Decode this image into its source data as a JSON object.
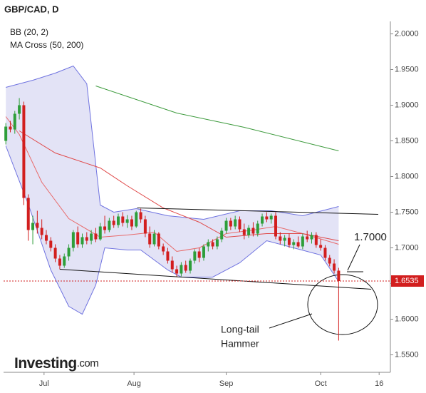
{
  "chart_data": {
    "type": "candlestick",
    "title": "GBP/CAD, D",
    "legend": [
      "BB (20, 2)",
      "MA Cross (50, 200)"
    ],
    "ohlc": [
      [
        1.85,
        1.875,
        1.845,
        1.87
      ],
      [
        1.87,
        1.878,
        1.862,
        1.866
      ],
      [
        1.866,
        1.892,
        1.86,
        1.888
      ],
      [
        1.888,
        1.91,
        1.88,
        1.9
      ],
      [
        1.9,
        1.905,
        1.76,
        1.77
      ],
      [
        1.77,
        1.775,
        1.71,
        1.725
      ],
      [
        1.725,
        1.745,
        1.705,
        1.735
      ],
      [
        1.735,
        1.752,
        1.72,
        1.728
      ],
      [
        1.728,
        1.74,
        1.712,
        1.718
      ],
      [
        1.718,
        1.725,
        1.705,
        1.71
      ],
      [
        1.71,
        1.715,
        1.695,
        1.7
      ],
      [
        1.7,
        1.705,
        1.68,
        1.685
      ],
      [
        1.685,
        1.69,
        1.67,
        1.675
      ],
      [
        1.675,
        1.692,
        1.672,
        1.688
      ],
      [
        1.688,
        1.705,
        1.682,
        1.7
      ],
      [
        1.7,
        1.725,
        1.695,
        1.722
      ],
      [
        1.722,
        1.73,
        1.7,
        1.705
      ],
      [
        1.705,
        1.72,
        1.7,
        1.715
      ],
      [
        1.715,
        1.722,
        1.705,
        1.71
      ],
      [
        1.71,
        1.725,
        1.705,
        1.72
      ],
      [
        1.72,
        1.728,
        1.708,
        1.712
      ],
      [
        1.712,
        1.735,
        1.71,
        1.73
      ],
      [
        1.73,
        1.745,
        1.72,
        1.725
      ],
      [
        1.725,
        1.742,
        1.722,
        1.738
      ],
      [
        1.738,
        1.745,
        1.728,
        1.732
      ],
      [
        1.732,
        1.748,
        1.728,
        1.744
      ],
      [
        1.744,
        1.75,
        1.73,
        1.735
      ],
      [
        1.735,
        1.746,
        1.728,
        1.74
      ],
      [
        1.74,
        1.745,
        1.725,
        1.73
      ],
      [
        1.73,
        1.752,
        1.728,
        1.75
      ],
      [
        1.75,
        1.755,
        1.735,
        1.74
      ],
      [
        1.74,
        1.745,
        1.715,
        1.72
      ],
      [
        1.72,
        1.73,
        1.7,
        1.705
      ],
      [
        1.705,
        1.725,
        1.702,
        1.72
      ],
      [
        1.72,
        1.722,
        1.698,
        1.702
      ],
      [
        1.702,
        1.706,
        1.69,
        1.695
      ],
      [
        1.695,
        1.7,
        1.678,
        1.682
      ],
      [
        1.682,
        1.688,
        1.665,
        1.67
      ],
      [
        1.67,
        1.675,
        1.66,
        1.664
      ],
      [
        1.664,
        1.68,
        1.66,
        1.676
      ],
      [
        1.676,
        1.682,
        1.665,
        1.668
      ],
      [
        1.668,
        1.685,
        1.664,
        1.682
      ],
      [
        1.682,
        1.698,
        1.678,
        1.695
      ],
      [
        1.695,
        1.7,
        1.68,
        1.686
      ],
      [
        1.686,
        1.705,
        1.682,
        1.702
      ],
      [
        1.702,
        1.712,
        1.695,
        1.708
      ],
      [
        1.708,
        1.712,
        1.698,
        1.702
      ],
      [
        1.702,
        1.716,
        1.698,
        1.712
      ],
      [
        1.712,
        1.728,
        1.708,
        1.724
      ],
      [
        1.724,
        1.742,
        1.72,
        1.738
      ],
      [
        1.738,
        1.742,
        1.725,
        1.73
      ],
      [
        1.73,
        1.745,
        1.726,
        1.74
      ],
      [
        1.74,
        1.744,
        1.722,
        1.726
      ],
      [
        1.726,
        1.734,
        1.712,
        1.718
      ],
      [
        1.718,
        1.732,
        1.714,
        1.728
      ],
      [
        1.728,
        1.736,
        1.716,
        1.72
      ],
      [
        1.72,
        1.738,
        1.716,
        1.734
      ],
      [
        1.734,
        1.748,
        1.73,
        1.744
      ],
      [
        1.744,
        1.75,
        1.736,
        1.74
      ],
      [
        1.74,
        1.748,
        1.734,
        1.745
      ],
      [
        1.745,
        1.75,
        1.712,
        1.716
      ],
      [
        1.716,
        1.722,
        1.705,
        1.71
      ],
      [
        1.71,
        1.718,
        1.702,
        1.714
      ],
      [
        1.714,
        1.72,
        1.7,
        1.704
      ],
      [
        1.704,
        1.712,
        1.698,
        1.708
      ],
      [
        1.708,
        1.716,
        1.7,
        1.702
      ],
      [
        1.702,
        1.72,
        1.698,
        1.716
      ],
      [
        1.716,
        1.724,
        1.708,
        1.712
      ],
      [
        1.712,
        1.722,
        1.706,
        1.718
      ],
      [
        1.718,
        1.722,
        1.7,
        1.704
      ],
      [
        1.704,
        1.712,
        1.696,
        1.7
      ],
      [
        1.7,
        1.704,
        1.682,
        1.686
      ],
      [
        1.686,
        1.69,
        1.674,
        1.678
      ],
      [
        1.678,
        1.684,
        1.664,
        1.668
      ],
      [
        1.668,
        1.672,
        1.57,
        1.6535
      ]
    ],
    "up_color": "#2e9e3a",
    "down_color": "#d21e1e",
    "bands": {
      "color": "#6f73e0",
      "fill": "#e3e3f6",
      "upper": {
        "x": [
          0,
          3,
          6,
          11,
          15,
          18,
          21,
          24,
          29,
          36,
          44,
          52,
          59,
          66,
          74
        ],
        "values": [
          1.925,
          1.93,
          1.935,
          1.945,
          1.955,
          1.93,
          1.76,
          1.75,
          1.755,
          1.745,
          1.74,
          1.752,
          1.752,
          1.745,
          1.758
        ]
      },
      "lower": {
        "x": [
          0,
          5,
          10,
          14,
          17,
          20,
          22,
          27,
          30,
          36,
          39,
          46,
          52,
          58,
          64,
          70,
          74
        ],
        "values": [
          1.843,
          1.761,
          1.669,
          1.618,
          1.607,
          1.648,
          1.7,
          1.697,
          1.697,
          1.669,
          1.659,
          1.659,
          1.679,
          1.71,
          1.7,
          1.69,
          1.653
        ]
      }
    },
    "series": [
      {
        "color": "#e86a6a",
        "x": [
          0,
          3,
          8,
          14,
          21,
          27,
          33,
          38,
          43,
          49,
          55,
          60,
          66,
          74
        ],
        "values": [
          1.884,
          1.859,
          1.792,
          1.741,
          1.715,
          1.718,
          1.722,
          1.695,
          1.7,
          1.72,
          1.725,
          1.73,
          1.72,
          1.705
        ]
      },
      {
        "color": "#e04848",
        "x": [
          3,
          11,
          21,
          27,
          35,
          43,
          49,
          58,
          66,
          74
        ],
        "values": [
          1.864,
          1.833,
          1.812,
          1.787,
          1.756,
          1.736,
          1.715,
          1.72,
          1.72,
          1.71
        ]
      },
      {
        "color": "#3c9a3c",
        "x": [
          20,
          38,
          53,
          74
        ],
        "values": [
          1.927,
          1.889,
          1.869,
          1.836
        ]
      }
    ],
    "trendlines": [
      {
        "x": [
          29.2,
          82.8
        ],
        "values": [
          1.756,
          1.747
        ]
      },
      {
        "x": [
          12,
          81.25
        ],
        "values": [
          1.67,
          1.642
        ]
      }
    ],
    "last_price": 1.6535,
    "last_price_color": "#d21e1e",
    "annotations": {
      "level": "1.7000",
      "pattern": [
        "Long-tail",
        "Hammer"
      ]
    },
    "logo": {
      "brand": "Investing",
      ".com": ".com"
    },
    "xlim": [
      -0.5,
      85.5
    ],
    "xticks": [
      {
        "value": 8.5,
        "label": "Jul"
      },
      {
        "value": 28.5,
        "label": "Aug"
      },
      {
        "value": 49,
        "label": "Sep"
      },
      {
        "value": 70,
        "label": "Oct"
      },
      {
        "value": 83,
        "label": "16"
      }
    ],
    "ylim": [
      1.5255,
      2.0175
    ],
    "yticks": [
      {
        "value": 1.55,
        "label": "1.5500"
      },
      {
        "value": 1.6,
        "label": "1.6000"
      },
      {
        "value": 1.65,
        "label": "1.6500"
      },
      {
        "value": 1.7,
        "label": "1.7000"
      },
      {
        "value": 1.75,
        "label": "1.7500"
      },
      {
        "value": 1.8,
        "label": "1.8000"
      },
      {
        "value": 1.85,
        "label": "1.8500"
      },
      {
        "value": 1.9,
        "label": "1.9000"
      },
      {
        "value": 1.95,
        "label": "1.9500"
      },
      {
        "value": 2,
        "label": "2.0000"
      }
    ],
    "grid": false
  }
}
